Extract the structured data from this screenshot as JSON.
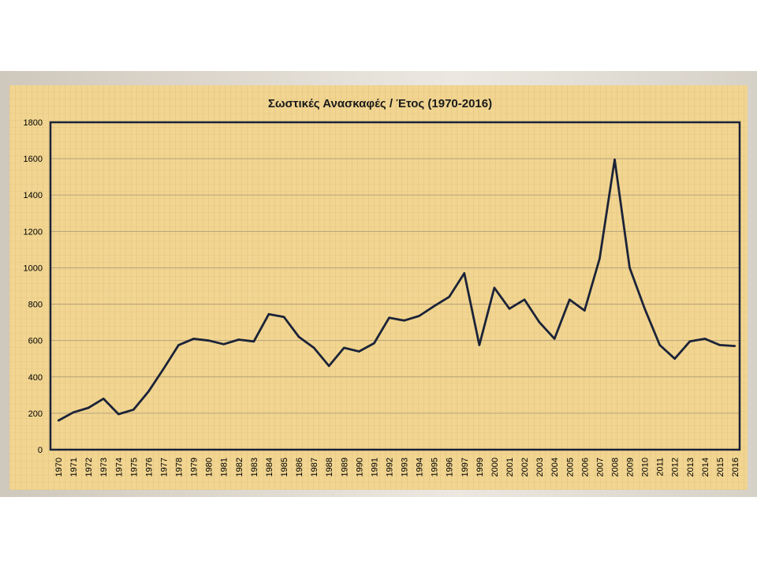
{
  "chart_data": {
    "type": "line",
    "title": "Σωστικές Ανασκαφές / Έτος (1970-2016)",
    "xlabel": "",
    "ylabel": "",
    "ylim": [
      0,
      1800
    ],
    "yticks": [
      0,
      200,
      400,
      600,
      800,
      1000,
      1200,
      1400,
      1600,
      1800
    ],
    "grid": true,
    "categories": [
      "1970",
      "1971",
      "1972",
      "1973",
      "1974",
      "1975",
      "1976",
      "1977",
      "1978",
      "1979",
      "1980",
      "1981",
      "1982",
      "1983",
      "1984",
      "1985",
      "1986",
      "1987",
      "1988",
      "1989",
      "1990",
      "1991",
      "1992",
      "1993",
      "1994",
      "1995",
      "1996",
      "1997",
      "1999",
      "2000",
      "2001",
      "2002",
      "2003",
      "2004",
      "2005",
      "2006",
      "2007",
      "2008",
      "2009",
      "2010",
      "2011",
      "2012",
      "2013",
      "2014",
      "2015",
      "2016"
    ],
    "series": [
      {
        "color": "#1b2338",
        "values": [
          160,
          205,
          230,
          280,
          195,
          220,
          320,
          445,
          575,
          610,
          600,
          580,
          605,
          595,
          745,
          730,
          620,
          560,
          460,
          560,
          540,
          585,
          725,
          710,
          735,
          790,
          840,
          970,
          575,
          890,
          775,
          825,
          700,
          610,
          825,
          765,
          1050,
          1595,
          1000,
          775,
          575,
          500,
          595,
          610,
          575,
          570
        ]
      }
    ]
  }
}
